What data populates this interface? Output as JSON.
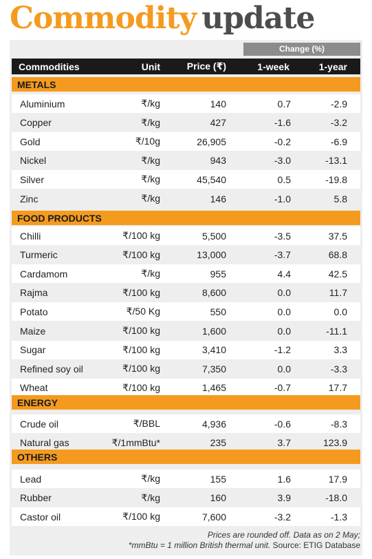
{
  "title": {
    "word1": "Commodity",
    "word2": "update"
  },
  "change_header": "Change (%)",
  "columns": {
    "commodities": "Commodities",
    "unit": "Unit",
    "price": "Price (₹)",
    "week": "1-week",
    "year": "1-year"
  },
  "sections": [
    {
      "label": "METALS",
      "rows": [
        {
          "name": "Aluminium",
          "unit": "₹/kg",
          "price": "140",
          "week": "0.7",
          "year": "-2.9"
        },
        {
          "name": "Copper",
          "unit": "₹/kg",
          "price": "427",
          "week": "-1.6",
          "year": "-3.2"
        },
        {
          "name": "Gold",
          "unit": "₹/10g",
          "price": "26,905",
          "week": "-0.2",
          "year": "-6.9"
        },
        {
          "name": "Nickel",
          "unit": "₹/kg",
          "price": "943",
          "week": "-3.0",
          "year": "-13.1"
        },
        {
          "name": "Silver",
          "unit": "₹/kg",
          "price": "45,540",
          "week": "0.5",
          "year": "-19.8"
        },
        {
          "name": "Zinc",
          "unit": "₹/kg",
          "price": "146",
          "week": "-1.0",
          "year": "5.8"
        }
      ]
    },
    {
      "label": "FOOD PRODUCTS",
      "rows": [
        {
          "name": "Chilli",
          "unit": "₹/100 kg",
          "price": "5,500",
          "week": "-3.5",
          "year": "37.5"
        },
        {
          "name": "Turmeric",
          "unit": "₹/100 kg",
          "price": "13,000",
          "week": "-3.7",
          "year": "68.8"
        },
        {
          "name": "Cardamom",
          "unit": "₹/kg",
          "price": "955",
          "week": "4.4",
          "year": "42.5"
        },
        {
          "name": "Rajma",
          "unit": "₹/100 kg",
          "price": "8,600",
          "week": "0.0",
          "year": "11.7"
        },
        {
          "name": "Potato",
          "unit": "₹/50 Kg",
          "price": "550",
          "week": "0.0",
          "year": "0.0"
        },
        {
          "name": "Maize",
          "unit": "₹/100 kg",
          "price": "1,600",
          "week": "0.0",
          "year": "-11.1"
        },
        {
          "name": "Sugar",
          "unit": "₹/100 kg",
          "price": "3,410",
          "week": "-1.2",
          "year": "3.3"
        },
        {
          "name": "Refined soy oil",
          "unit": "₹/100 kg",
          "price": "7,350",
          "week": "0.0",
          "year": "-3.3"
        },
        {
          "name": "Wheat",
          "unit": "₹/100 kg",
          "price": "1,465",
          "week": "-0.7",
          "year": "17.7"
        }
      ]
    },
    {
      "label": "ENERGY",
      "rows": [
        {
          "name": "Crude oil",
          "unit": "₹/BBL",
          "price": "4,936",
          "week": "-0.6",
          "year": "-8.3"
        },
        {
          "name": "Natural gas",
          "unit": "₹/1mmBtu*",
          "price": "235",
          "week": "3.7",
          "year": "123.9"
        }
      ]
    },
    {
      "label": "OTHERS",
      "rows": [
        {
          "name": "Lead",
          "unit": "₹/kg",
          "price": "155",
          "week": "1.6",
          "year": "17.9"
        },
        {
          "name": "Rubber",
          "unit": "₹/kg",
          "price": "160",
          "week": "3.9",
          "year": "-18.0"
        },
        {
          "name": "Castor oil",
          "unit": "₹/100 kg",
          "price": "7,600",
          "week": "-3.2",
          "year": "-1.3"
        }
      ]
    }
  ],
  "footer": {
    "line1": "Prices are rounded off. Data as on 2 May;",
    "line2_note": "*mmBtu = 1 million British thermal unit.",
    "line2_source": "Source: ETIG Database"
  }
}
